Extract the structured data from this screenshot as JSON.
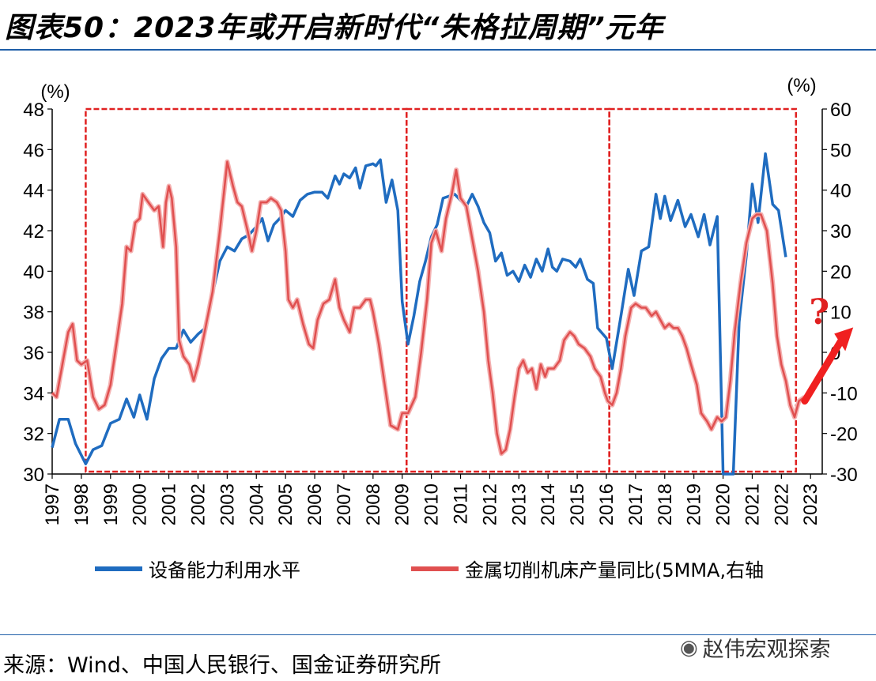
{
  "page": {
    "title": "图表50：2023年或开启新时代“朱格拉周期”元年",
    "source": "来源：Wind、中国人民银行、国金证券研究所",
    "watermark": "赵伟宏观探索",
    "question_mark": "?"
  },
  "chart_data": {
    "type": "line",
    "x_ticks": [
      "1997",
      "1998",
      "1999",
      "2000",
      "2001",
      "2002",
      "2003",
      "2004",
      "2005",
      "2006",
      "2007",
      "2008",
      "2009",
      "2010",
      "2011",
      "2012",
      "2013",
      "2014",
      "2015",
      "2016",
      "2017",
      "2018",
      "2019",
      "2020",
      "2021",
      "2022",
      "2023"
    ],
    "left_axis": {
      "unit": "(%)",
      "ylim": [
        30,
        48
      ],
      "ticks": [
        "48",
        "46",
        "44",
        "42",
        "40",
        "38",
        "36",
        "34",
        "32",
        "30"
      ]
    },
    "right_axis": {
      "unit": "(%)",
      "ylim": [
        -30,
        60
      ],
      "ticks": [
        "60",
        "50",
        "40",
        "30",
        "20",
        "10",
        "0",
        "-10",
        "-20",
        "-30"
      ]
    },
    "series": [
      {
        "name": "设备能力利用水平",
        "axis": "left",
        "color": "#1f6cc0",
        "points": [
          [
            1997.0,
            31.3
          ],
          [
            1997.25,
            32.7
          ],
          [
            1997.55,
            32.7
          ],
          [
            1997.8,
            31.5
          ],
          [
            1998.15,
            30.5
          ],
          [
            1998.4,
            31.2
          ],
          [
            1998.7,
            31.4
          ],
          [
            1999.0,
            32.5
          ],
          [
            1999.3,
            32.7
          ],
          [
            1999.55,
            33.7
          ],
          [
            1999.8,
            32.8
          ],
          [
            2000.0,
            33.9
          ],
          [
            2000.25,
            32.7
          ],
          [
            2000.5,
            34.7
          ],
          [
            2000.75,
            35.7
          ],
          [
            2001.0,
            36.2
          ],
          [
            2001.25,
            36.2
          ],
          [
            2001.5,
            37.1
          ],
          [
            2001.75,
            36.5
          ],
          [
            2002.0,
            36.9
          ],
          [
            2002.25,
            37.2
          ],
          [
            2002.5,
            38.9
          ],
          [
            2002.75,
            40.5
          ],
          [
            2003.0,
            41.2
          ],
          [
            2003.25,
            41.0
          ],
          [
            2003.5,
            41.6
          ],
          [
            2003.75,
            41.8
          ],
          [
            2004.0,
            42.2
          ],
          [
            2004.2,
            42.6
          ],
          [
            2004.4,
            41.5
          ],
          [
            2004.6,
            42.3
          ],
          [
            2004.8,
            42.6
          ],
          [
            2005.0,
            43.0
          ],
          [
            2005.25,
            42.7
          ],
          [
            2005.5,
            43.5
          ],
          [
            2005.75,
            43.8
          ],
          [
            2006.0,
            43.9
          ],
          [
            2006.25,
            43.9
          ],
          [
            2006.45,
            43.6
          ],
          [
            2006.7,
            44.7
          ],
          [
            2006.85,
            44.3
          ],
          [
            2007.0,
            44.8
          ],
          [
            2007.2,
            44.6
          ],
          [
            2007.4,
            45.1
          ],
          [
            2007.55,
            44.1
          ],
          [
            2007.75,
            45.2
          ],
          [
            2008.0,
            45.3
          ],
          [
            2008.1,
            45.2
          ],
          [
            2008.25,
            45.5
          ],
          [
            2008.45,
            43.4
          ],
          [
            2008.65,
            44.5
          ],
          [
            2008.85,
            43.0
          ],
          [
            2009.0,
            38.5
          ],
          [
            2009.2,
            36.4
          ],
          [
            2009.4,
            37.8
          ],
          [
            2009.6,
            39.5
          ],
          [
            2009.8,
            40.5
          ],
          [
            2010.0,
            41.7
          ],
          [
            2010.2,
            42.3
          ],
          [
            2010.4,
            43.6
          ],
          [
            2010.6,
            43.7
          ],
          [
            2010.8,
            43.8
          ],
          [
            2011.0,
            43.5
          ],
          [
            2011.2,
            43.2
          ],
          [
            2011.4,
            43.8
          ],
          [
            2011.6,
            43.2
          ],
          [
            2011.8,
            42.4
          ],
          [
            2012.0,
            41.9
          ],
          [
            2012.2,
            40.5
          ],
          [
            2012.4,
            40.9
          ],
          [
            2012.6,
            39.8
          ],
          [
            2012.8,
            40.0
          ],
          [
            2013.0,
            39.5
          ],
          [
            2013.2,
            40.3
          ],
          [
            2013.4,
            39.7
          ],
          [
            2013.6,
            40.6
          ],
          [
            2013.8,
            40.0
          ],
          [
            2014.0,
            41.1
          ],
          [
            2014.15,
            40.2
          ],
          [
            2014.3,
            40.0
          ],
          [
            2014.5,
            40.6
          ],
          [
            2014.75,
            40.5
          ],
          [
            2014.95,
            40.2
          ],
          [
            2015.1,
            40.6
          ],
          [
            2015.35,
            39.6
          ],
          [
            2015.55,
            39.4
          ],
          [
            2015.7,
            37.2
          ],
          [
            2016.0,
            36.7
          ],
          [
            2016.2,
            35.2
          ],
          [
            2016.5,
            37.8
          ],
          [
            2016.75,
            40.1
          ],
          [
            2016.95,
            38.8
          ],
          [
            2017.2,
            41.0
          ],
          [
            2017.45,
            41.2
          ],
          [
            2017.7,
            43.8
          ],
          [
            2017.85,
            42.6
          ],
          [
            2018.0,
            43.7
          ],
          [
            2018.2,
            42.5
          ],
          [
            2018.45,
            43.5
          ],
          [
            2018.7,
            42.2
          ],
          [
            2018.9,
            42.8
          ],
          [
            2019.15,
            41.7
          ],
          [
            2019.35,
            42.8
          ],
          [
            2019.55,
            41.3
          ],
          [
            2019.8,
            42.7
          ],
          [
            2020.0,
            30.0
          ],
          [
            2020.1,
            30.0
          ],
          [
            2020.35,
            30.0
          ],
          [
            2020.55,
            37.5
          ],
          [
            2020.8,
            40.8
          ],
          [
            2021.0,
            44.3
          ],
          [
            2021.2,
            42.4
          ],
          [
            2021.45,
            45.8
          ],
          [
            2021.7,
            43.3
          ],
          [
            2021.9,
            43.0
          ],
          [
            2022.15,
            40.7
          ]
        ]
      },
      {
        "name": "金属切削机床产量同比(5MMA,右轴",
        "axis": "right",
        "color": "#e05050",
        "points": [
          [
            1997.0,
            -10
          ],
          [
            1997.15,
            -11
          ],
          [
            1997.35,
            -3
          ],
          [
            1997.55,
            5
          ],
          [
            1997.7,
            7
          ],
          [
            1997.85,
            -2
          ],
          [
            1998.0,
            -3
          ],
          [
            1998.2,
            -2
          ],
          [
            1998.4,
            -11
          ],
          [
            1998.6,
            -14
          ],
          [
            1998.8,
            -13
          ],
          [
            1999.0,
            -8
          ],
          [
            1999.2,
            2
          ],
          [
            1999.4,
            12
          ],
          [
            1999.55,
            26
          ],
          [
            1999.7,
            25
          ],
          [
            1999.85,
            32
          ],
          [
            2000.0,
            33
          ],
          [
            2000.1,
            39
          ],
          [
            2000.3,
            37
          ],
          [
            2000.5,
            35
          ],
          [
            2000.65,
            36
          ],
          [
            2000.8,
            26
          ],
          [
            2000.9,
            37
          ],
          [
            2001.0,
            41
          ],
          [
            2001.1,
            38
          ],
          [
            2001.25,
            26
          ],
          [
            2001.35,
            3
          ],
          [
            2001.5,
            -1
          ],
          [
            2001.7,
            -3
          ],
          [
            2001.85,
            -7
          ],
          [
            2002.0,
            -3
          ],
          [
            2002.2,
            4
          ],
          [
            2002.5,
            15
          ],
          [
            2002.75,
            30
          ],
          [
            2003.0,
            47
          ],
          [
            2003.2,
            41
          ],
          [
            2003.35,
            37
          ],
          [
            2003.5,
            36
          ],
          [
            2003.7,
            30
          ],
          [
            2003.85,
            25
          ],
          [
            2004.0,
            30
          ],
          [
            2004.15,
            37
          ],
          [
            2004.35,
            37
          ],
          [
            2004.5,
            38
          ],
          [
            2004.7,
            37
          ],
          [
            2004.85,
            35
          ],
          [
            2005.0,
            25
          ],
          [
            2005.1,
            13
          ],
          [
            2005.25,
            11
          ],
          [
            2005.4,
            13
          ],
          [
            2005.6,
            7
          ],
          [
            2005.8,
            2
          ],
          [
            2005.95,
            1
          ],
          [
            2006.1,
            8
          ],
          [
            2006.3,
            12
          ],
          [
            2006.5,
            13
          ],
          [
            2006.7,
            18
          ],
          [
            2006.85,
            11
          ],
          [
            2007.0,
            8
          ],
          [
            2007.2,
            5
          ],
          [
            2007.35,
            11
          ],
          [
            2007.55,
            11
          ],
          [
            2007.75,
            13
          ],
          [
            2007.9,
            13
          ],
          [
            2008.0,
            10
          ],
          [
            2008.2,
            2
          ],
          [
            2008.4,
            -8
          ],
          [
            2008.6,
            -18
          ],
          [
            2008.85,
            -19
          ],
          [
            2009.0,
            -15
          ],
          [
            2009.2,
            -15
          ],
          [
            2009.45,
            -11
          ],
          [
            2009.65,
            0
          ],
          [
            2009.85,
            13
          ],
          [
            2010.0,
            27
          ],
          [
            2010.15,
            30
          ],
          [
            2010.35,
            25
          ],
          [
            2010.5,
            33
          ],
          [
            2010.7,
            39
          ],
          [
            2010.85,
            45
          ],
          [
            2011.0,
            38
          ],
          [
            2011.2,
            36
          ],
          [
            2011.4,
            28
          ],
          [
            2011.6,
            20
          ],
          [
            2011.8,
            10
          ],
          [
            2011.95,
            -2
          ],
          [
            2012.1,
            -10
          ],
          [
            2012.25,
            -20
          ],
          [
            2012.4,
            -25
          ],
          [
            2012.55,
            -24
          ],
          [
            2012.7,
            -19
          ],
          [
            2012.85,
            -11
          ],
          [
            2013.0,
            -4
          ],
          [
            2013.15,
            -2
          ],
          [
            2013.3,
            -5
          ],
          [
            2013.45,
            -4
          ],
          [
            2013.6,
            -9
          ],
          [
            2013.75,
            -3
          ],
          [
            2013.9,
            -6
          ],
          [
            2014.0,
            -4
          ],
          [
            2014.2,
            -4
          ],
          [
            2014.4,
            -2
          ],
          [
            2014.55,
            3
          ],
          [
            2014.75,
            5
          ],
          [
            2014.9,
            4
          ],
          [
            2015.05,
            2
          ],
          [
            2015.25,
            1
          ],
          [
            2015.45,
            -1
          ],
          [
            2015.6,
            -4
          ],
          [
            2015.8,
            -6
          ],
          [
            2015.95,
            -10
          ],
          [
            2016.05,
            -12
          ],
          [
            2016.2,
            -13
          ],
          [
            2016.35,
            -10
          ],
          [
            2016.5,
            -4
          ],
          [
            2016.65,
            4
          ],
          [
            2016.85,
            11
          ],
          [
            2017.0,
            12
          ],
          [
            2017.2,
            11
          ],
          [
            2017.35,
            11
          ],
          [
            2017.55,
            9
          ],
          [
            2017.7,
            10
          ],
          [
            2017.85,
            8
          ],
          [
            2018.0,
            6
          ],
          [
            2018.15,
            7
          ],
          [
            2018.3,
            6
          ],
          [
            2018.45,
            6
          ],
          [
            2018.6,
            4
          ],
          [
            2018.75,
            1
          ],
          [
            2018.9,
            -3
          ],
          [
            2019.1,
            -8
          ],
          [
            2019.25,
            -15
          ],
          [
            2019.45,
            -17
          ],
          [
            2019.6,
            -19
          ],
          [
            2019.8,
            -16
          ],
          [
            2019.95,
            -17
          ],
          [
            2020.1,
            -16
          ],
          [
            2020.25,
            -7
          ],
          [
            2020.4,
            5
          ],
          [
            2020.6,
            17
          ],
          [
            2020.8,
            27
          ],
          [
            2021.0,
            33
          ],
          [
            2021.15,
            34
          ],
          [
            2021.3,
            34
          ],
          [
            2021.5,
            30
          ],
          [
            2021.7,
            17
          ],
          [
            2021.85,
            4
          ],
          [
            2022.0,
            -3
          ],
          [
            2022.15,
            -7
          ],
          [
            2022.3,
            -13
          ],
          [
            2022.45,
            -16
          ],
          [
            2022.6,
            -12
          ],
          [
            2022.8,
            -11
          ]
        ]
      }
    ],
    "annotations": [
      {
        "type": "period-box",
        "from": 1998.15,
        "to": 2009.15
      },
      {
        "type": "period-box",
        "from": 2009.15,
        "to": 2016.1
      },
      {
        "type": "period-box",
        "from": 2016.1,
        "to": 2022.5
      },
      {
        "type": "arrow",
        "label": "?"
      }
    ]
  }
}
